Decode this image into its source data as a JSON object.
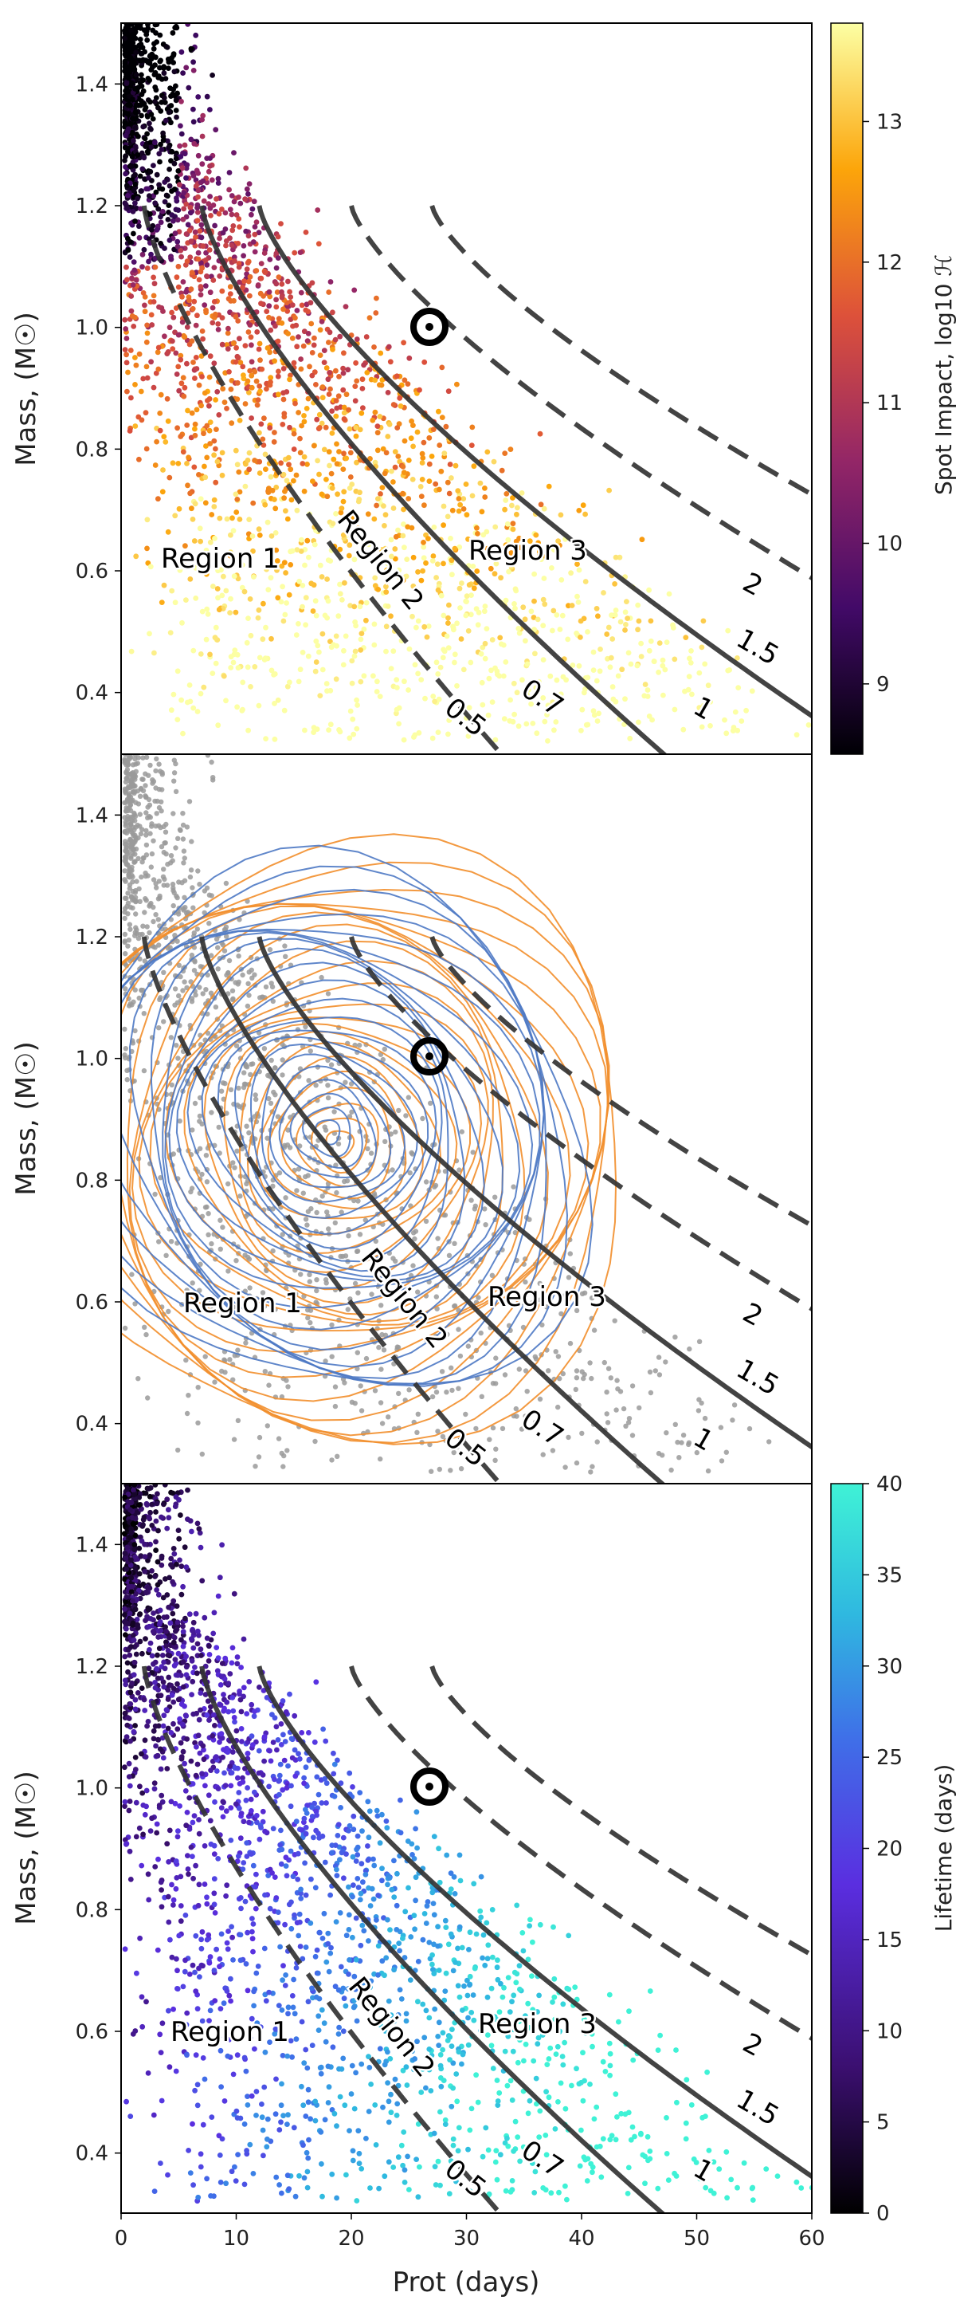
{
  "chart_data": [
    {
      "type": "scatter",
      "panel": "top",
      "xlabel": "",
      "ylabel": "Mass, (M☉)",
      "xlim": [
        0,
        60
      ],
      "ylim": [
        0.3,
        1.5
      ],
      "y_ticks": [
        "0.4",
        "0.6",
        "0.8",
        "1.0",
        "1.2",
        "1.4"
      ],
      "colorbar": {
        "label": "Spot Impact, log10 ℋ",
        "range": [
          8.5,
          13.7
        ],
        "ticks": [
          "9",
          "10",
          "11",
          "12",
          "13"
        ],
        "colormap": "inferno",
        "colors": [
          "#000004",
          "#420a68",
          "#932667",
          "#dd513a",
          "#fca50a",
          "#fcffa4"
        ]
      },
      "scatter_description": "dense cloud of stars; highest mass and shortest period dark, lower masses bright yellow-orange",
      "regions": [
        "Region 1",
        "Region 2",
        "Region 3"
      ],
      "gyrochrones": [
        {
          "label": "0.5",
          "style": "dashed"
        },
        {
          "label": "0.7",
          "style": "solid"
        },
        {
          "label": "1",
          "style": "solid"
        },
        {
          "label": "1.5",
          "style": "dashed"
        },
        {
          "label": "2",
          "style": "dashed"
        }
      ],
      "sun": {
        "x": 27,
        "y": 1.0
      }
    },
    {
      "type": "scatter",
      "panel": "middle",
      "xlabel": "",
      "ylabel": "Mass, (M☉)",
      "xlim": [
        0,
        60
      ],
      "ylim": [
        0.3,
        1.5
      ],
      "y_ticks": [
        "0.4",
        "0.6",
        "0.8",
        "1.0",
        "1.2",
        "1.4"
      ],
      "contours": [
        {
          "color": "#f28e2b",
          "center": [
            19,
            0.86
          ]
        },
        {
          "color": "#4e79c4",
          "center": [
            18,
            0.88
          ]
        }
      ],
      "point_color": "#9a9a9a",
      "regions": [
        "Region 1",
        "Region 2",
        "Region 3"
      ],
      "gyrochrones": [
        {
          "label": "0.5",
          "style": "dashed"
        },
        {
          "label": "0.7",
          "style": "solid"
        },
        {
          "label": "1",
          "style": "solid"
        },
        {
          "label": "1.5",
          "style": "dashed"
        },
        {
          "label": "2",
          "style": "dashed"
        }
      ],
      "sun": {
        "x": 27,
        "y": 1.0
      }
    },
    {
      "type": "scatter",
      "panel": "bottom",
      "xlabel": "Prot (days)",
      "ylabel": "Mass, (M☉)",
      "xlim": [
        0,
        60
      ],
      "ylim": [
        0.3,
        1.5
      ],
      "x_ticks": [
        "0",
        "10",
        "20",
        "30",
        "40",
        "50",
        "60"
      ],
      "y_ticks": [
        "0.4",
        "0.6",
        "0.8",
        "1.0",
        "1.2",
        "1.4"
      ],
      "colorbar": {
        "label": "Lifetime (days)",
        "range": [
          0,
          40
        ],
        "ticks": [
          "0",
          "5",
          "10",
          "15",
          "20",
          "25",
          "30",
          "35",
          "40"
        ],
        "colormap": "cool-violet",
        "colors": [
          "#000000",
          "#3b0f70",
          "#5a2ee0",
          "#3f6fe8",
          "#2fb8e0",
          "#3ff2d6"
        ]
      },
      "scatter_description": "shortest periods and high mass dark purple; longer lifetime cyan concentrated at low mass and long period",
      "regions": [
        "Region 1",
        "Region 2",
        "Region 3"
      ],
      "gyrochrones": [
        {
          "label": "0.5",
          "style": "dashed"
        },
        {
          "label": "0.7",
          "style": "solid"
        },
        {
          "label": "1",
          "style": "solid"
        },
        {
          "label": "1.5",
          "style": "dashed"
        },
        {
          "label": "2",
          "style": "dashed"
        }
      ],
      "sun": {
        "x": 27,
        "y": 1.0
      }
    }
  ]
}
